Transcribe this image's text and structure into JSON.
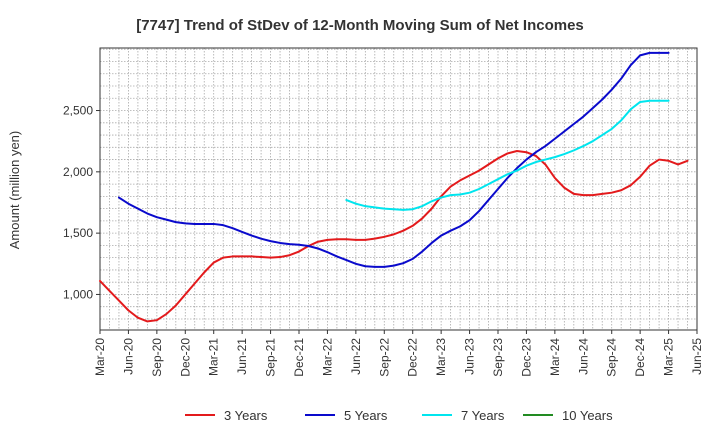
{
  "chart_data": {
    "type": "line",
    "title": "[7747]  Trend of StDev of 12-Month Moving Sum of Net Incomes",
    "ylabel": "Amount (million yen)",
    "xlabel": "",
    "x_ticks": [
      "Mar-20",
      "Jun-20",
      "Sep-20",
      "Dec-20",
      "Mar-21",
      "Jun-21",
      "Sep-21",
      "Dec-21",
      "Mar-22",
      "Jun-22",
      "Sep-22",
      "Dec-22",
      "Mar-23",
      "Jun-23",
      "Sep-23",
      "Dec-23",
      "Mar-24",
      "Jun-24",
      "Sep-24",
      "Dec-24",
      "Mar-25",
      "Jun-25"
    ],
    "y_ticks": [
      1000,
      1500,
      2000,
      2500
    ],
    "y_tick_labels": [
      "1,000",
      "1,500",
      "2,000",
      "2,500"
    ],
    "ylim": [
      710,
      3010
    ],
    "xlim": [
      0,
      63
    ],
    "grid": true,
    "legend_position": "bottom",
    "series": [
      {
        "name": "3 Years",
        "color": "#e31a1c",
        "start": 0,
        "values": [
          1110,
          1030,
          950,
          870,
          810,
          780,
          790,
          840,
          910,
          1000,
          1090,
          1180,
          1260,
          1300,
          1310,
          1310,
          1310,
          1305,
          1300,
          1305,
          1320,
          1350,
          1395,
          1430,
          1445,
          1450,
          1450,
          1445,
          1445,
          1455,
          1470,
          1490,
          1520,
          1560,
          1620,
          1700,
          1800,
          1880,
          1930,
          1970,
          2010,
          2060,
          2110,
          2150,
          2170,
          2160,
          2130,
          2060,
          1950,
          1870,
          1820,
          1810,
          1810,
          1820,
          1830,
          1850,
          1890,
          1960,
          2050,
          2100,
          2090,
          2060,
          2090
        ]
      },
      {
        "name": "5 Years",
        "color": "#0a0acc",
        "start": 2,
        "values": [
          1790,
          1740,
          1700,
          1660,
          1630,
          1610,
          1590,
          1580,
          1575,
          1575,
          1575,
          1565,
          1540,
          1510,
          1480,
          1455,
          1435,
          1420,
          1410,
          1405,
          1395,
          1375,
          1345,
          1310,
          1280,
          1250,
          1230,
          1225,
          1225,
          1235,
          1255,
          1290,
          1350,
          1420,
          1480,
          1520,
          1555,
          1605,
          1680,
          1770,
          1860,
          1950,
          2030,
          2100,
          2160,
          2210,
          2270,
          2330,
          2390,
          2450,
          2520,
          2590,
          2670,
          2760,
          2870,
          2950,
          2970,
          2970,
          2970
        ]
      },
      {
        "name": "7 Years",
        "color": "#00e5ee",
        "start": 26,
        "values": [
          1770,
          1740,
          1720,
          1710,
          1700,
          1695,
          1690,
          1695,
          1720,
          1760,
          1790,
          1810,
          1815,
          1830,
          1860,
          1900,
          1940,
          1980,
          2010,
          2050,
          2080,
          2100,
          2120,
          2145,
          2175,
          2210,
          2250,
          2300,
          2350,
          2420,
          2510,
          2570,
          2580,
          2580,
          2580
        ]
      },
      {
        "name": "10 Years",
        "color": "#228b22",
        "start": 0,
        "values": []
      }
    ]
  }
}
